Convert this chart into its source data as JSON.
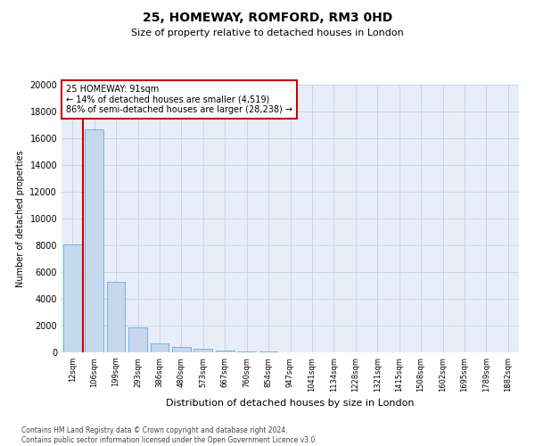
{
  "title1": "25, HOMEWAY, ROMFORD, RM3 0HD",
  "title2": "Size of property relative to detached houses in London",
  "xlabel": "Distribution of detached houses by size in London",
  "ylabel": "Number of detached properties",
  "footnote": "Contains HM Land Registry data © Crown copyright and database right 2024.\nContains public sector information licensed under the Open Government Licence v3.0.",
  "bar_values": [
    8100,
    16700,
    5300,
    1850,
    700,
    380,
    280,
    150,
    100,
    60,
    30,
    20,
    15,
    10,
    8,
    5,
    4,
    3,
    2,
    1,
    1
  ],
  "x_labels": [
    "12sqm",
    "106sqm",
    "199sqm",
    "293sqm",
    "386sqm",
    "480sqm",
    "573sqm",
    "667sqm",
    "760sqm",
    "854sqm",
    "947sqm",
    "1041sqm",
    "1134sqm",
    "1228sqm",
    "1321sqm",
    "1415sqm",
    "1508sqm",
    "1602sqm",
    "1695sqm",
    "1789sqm",
    "1882sqm"
  ],
  "bar_color": "#c5d8ee",
  "bar_edge_color": "#6aaad4",
  "grid_color": "#c8d4e4",
  "vline_x": 0.5,
  "vline_color": "#cc0000",
  "annotation_text": "25 HOMEWAY: 91sqm\n← 14% of detached houses are smaller (4,519)\n86% of semi-detached houses are larger (28,238) →",
  "annotation_box_color": "#cc0000",
  "ylim_max": 20000,
  "yticks": [
    0,
    2000,
    4000,
    6000,
    8000,
    10000,
    12000,
    14000,
    16000,
    18000,
    20000
  ],
  "background_color": "#e8eef8",
  "fig_bg_color": "#ffffff",
  "title1_fontsize": 10,
  "title2_fontsize": 8,
  "ylabel_fontsize": 7,
  "xlabel_fontsize": 8,
  "ytick_fontsize": 7,
  "xtick_fontsize": 6,
  "annotation_fontsize": 7,
  "footnote_fontsize": 5.5
}
